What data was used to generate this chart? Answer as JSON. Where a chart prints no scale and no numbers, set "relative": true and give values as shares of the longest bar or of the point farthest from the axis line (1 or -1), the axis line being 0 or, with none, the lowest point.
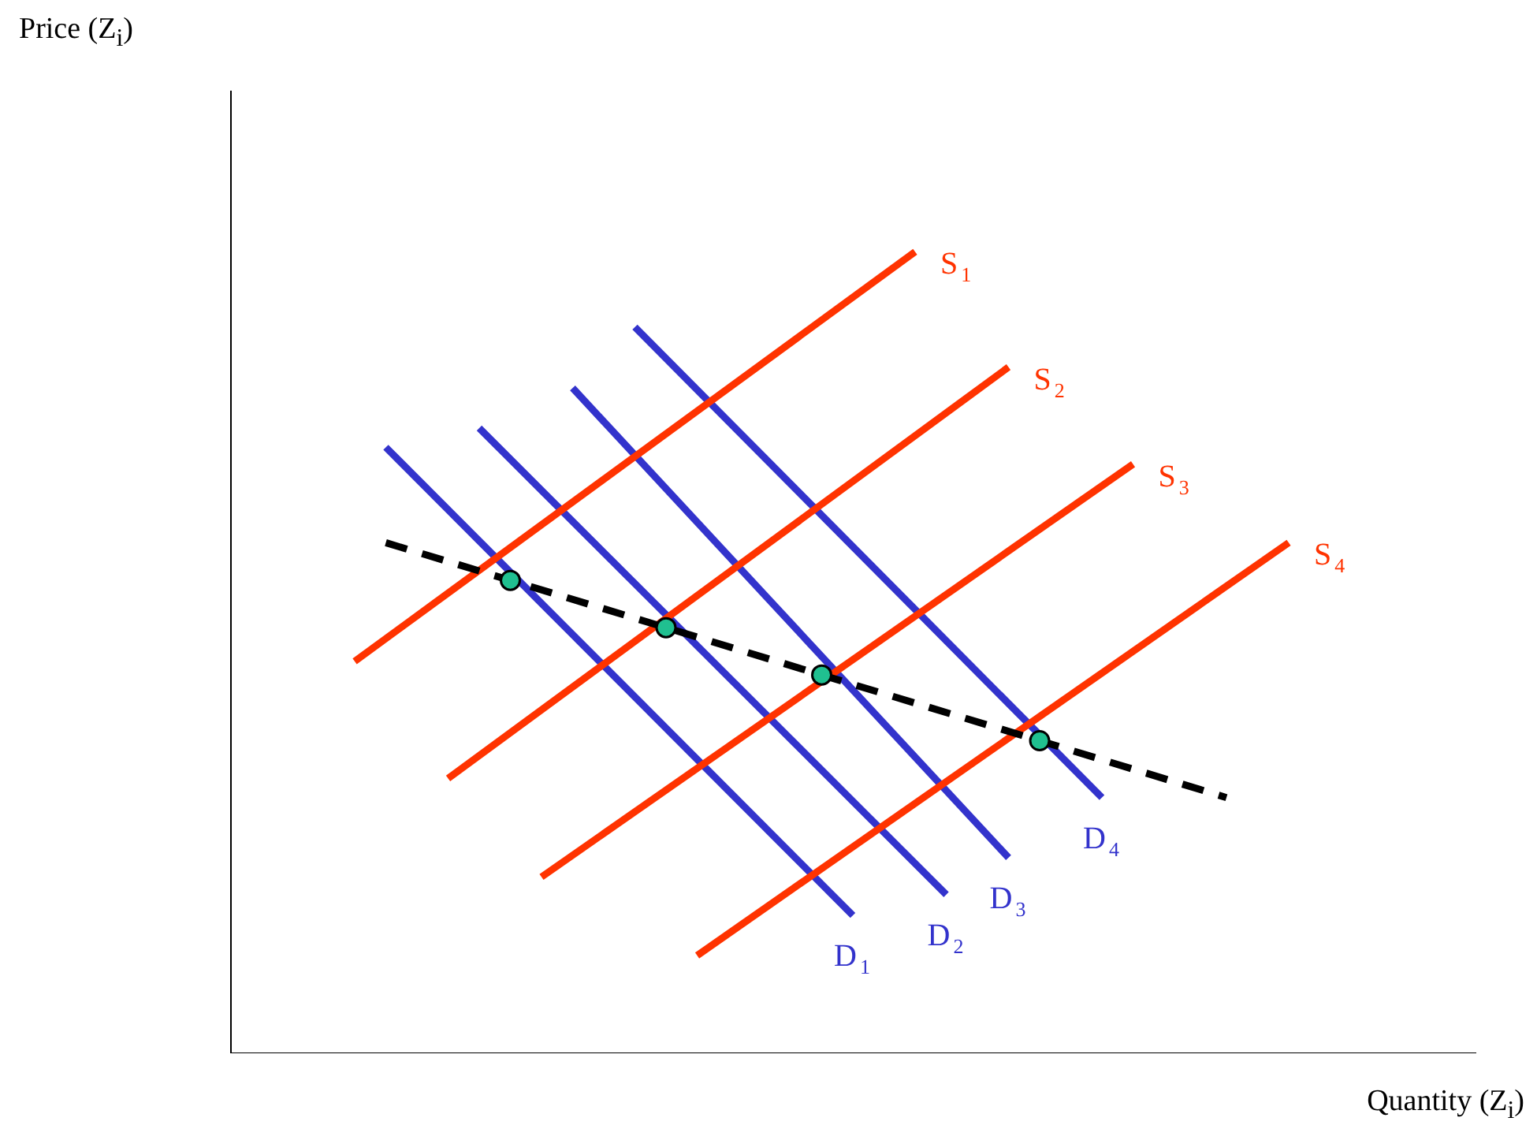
{
  "chart_data": {
    "type": "line",
    "relative": true,
    "xlabel": "Quantity (Z$_{i}$)",
    "annotations": [
      "Price (Z$_{i}$)"
    ],
    "grid": false,
    "legend": false,
    "tick_labels": false,
    "marker": "none",
    "categories": [
      null,
      null,
      null,
      null,
      null,
      null,
      null,
      null,
      null,
      null,
      null,
      null,
      null,
      null,
      null,
      null,
      null,
      null,
      null,
      null,
      null,
      null,
      null,
      null,
      null,
      null,
      null,
      null,
      null,
      null,
      null,
      null,
      null,
      null,
      null,
      null,
      null,
      null,
      null,
      null,
      null
    ],
    "series": [
      {
        "name": "S$_{1}$",
        "color": "#ff3300",
        "values": [
          null,
          null,
          null,
          null,
          0.489,
          null,
          null,
          null,
          null,
          null,
          null,
          null,
          null,
          null,
          null,
          null,
          null,
          null,
          null,
          null,
          null,
          null,
          1.0,
          null,
          null,
          null,
          null,
          null,
          null,
          null,
          null,
          null,
          null,
          null,
          null,
          null,
          null,
          null,
          null,
          null,
          null
        ]
      },
      {
        "name": "S$_{2}$",
        "color": "#ff3300",
        "values": [
          null,
          null,
          null,
          null,
          null,
          null,
          null,
          0.343,
          null,
          null,
          null,
          null,
          null,
          null,
          null,
          null,
          null,
          null,
          null,
          null,
          null,
          null,
          null,
          null,
          null,
          0.856,
          null,
          null,
          null,
          null,
          null,
          null,
          null,
          null,
          null,
          null,
          null,
          null,
          null,
          null,
          null
        ]
      },
      {
        "name": "S$_{3}$",
        "color": "#ff3300",
        "values": [
          null,
          null,
          null,
          null,
          null,
          null,
          null,
          null,
          null,
          null,
          0.22,
          null,
          null,
          null,
          null,
          null,
          null,
          null,
          null,
          null,
          null,
          null,
          null,
          null,
          null,
          null,
          null,
          null,
          null,
          0.735,
          null,
          null,
          null,
          null,
          null,
          null,
          null,
          null,
          null,
          null,
          null
        ]
      },
      {
        "name": "S$_{4}$",
        "color": "#ff3300",
        "values": [
          null,
          null,
          null,
          null,
          null,
          null,
          null,
          null,
          null,
          null,
          null,
          null,
          null,
          null,
          null,
          0.122,
          null,
          null,
          null,
          null,
          null,
          null,
          null,
          null,
          null,
          null,
          null,
          null,
          null,
          null,
          null,
          null,
          null,
          null,
          0.637,
          null,
          null,
          null,
          null,
          null,
          null
        ]
      },
      {
        "name": "D$_{1}$",
        "color": "#3333cc",
        "values": [
          null,
          null,
          null,
          null,
          null,
          0.756,
          null,
          null,
          null,
          null,
          null,
          null,
          null,
          null,
          null,
          null,
          null,
          null,
          null,
          null,
          0.172,
          null,
          null,
          null,
          null,
          null,
          null,
          null,
          null,
          null,
          null,
          null,
          null,
          null,
          null,
          null,
          null,
          null,
          null,
          null,
          null
        ]
      },
      {
        "name": "D$_{2}$",
        "color": "#3333cc",
        "values": [
          null,
          null,
          null,
          null,
          null,
          null,
          null,
          null,
          0.78,
          null,
          null,
          null,
          null,
          null,
          null,
          null,
          null,
          null,
          null,
          null,
          null,
          null,
          null,
          0.198,
          null,
          null,
          null,
          null,
          null,
          null,
          null,
          null,
          null,
          null,
          null,
          null,
          null,
          null,
          null,
          null,
          null
        ]
      },
      {
        "name": "D$_{3}$",
        "color": "#3333cc",
        "values": [
          null,
          null,
          null,
          null,
          null,
          null,
          null,
          null,
          null,
          null,
          null,
          0.83,
          null,
          null,
          null,
          null,
          null,
          null,
          null,
          null,
          null,
          null,
          null,
          null,
          null,
          0.244,
          null,
          null,
          null,
          null,
          null,
          null,
          null,
          null,
          null,
          null,
          null,
          null,
          null,
          null,
          null
        ]
      },
      {
        "name": "D$_{4}$",
        "color": "#3333cc",
        "values": [
          null,
          null,
          null,
          null,
          null,
          null,
          null,
          null,
          null,
          null,
          null,
          null,
          null,
          0.906,
          null,
          null,
          null,
          null,
          null,
          null,
          null,
          null,
          null,
          null,
          null,
          null,
          null,
          null,
          0.319,
          null,
          null,
          null,
          null,
          null,
          null,
          null,
          null,
          null,
          null,
          null,
          null
        ]
      },
      {
        "color": "#000000",
        "line_style": "dashed",
        "marker": "circle",
        "colors": [
          null,
          null,
          null,
          null,
          null,
          null,
          null,
          null,
          null,
          "#20c090",
          null,
          null,
          null,
          null,
          "#20c090",
          null,
          null,
          null,
          null,
          "#20c090",
          null,
          null,
          null,
          null,
          null,
          null,
          "#20c090",
          null,
          null,
          null,
          null,
          null,
          null,
          null,
          null,
          null,
          null,
          null,
          null,
          null,
          null
        ],
        "values": [
          null,
          null,
          null,
          null,
          null,
          0.637,
          null,
          null,
          null,
          0.59,
          null,
          null,
          null,
          null,
          0.531,
          null,
          null,
          null,
          null,
          0.472,
          null,
          null,
          null,
          null,
          null,
          null,
          0.39,
          null,
          null,
          null,
          null,
          null,
          0.319,
          null,
          null,
          null,
          null,
          null,
          null,
          null,
          null
        ]
      }
    ]
  }
}
